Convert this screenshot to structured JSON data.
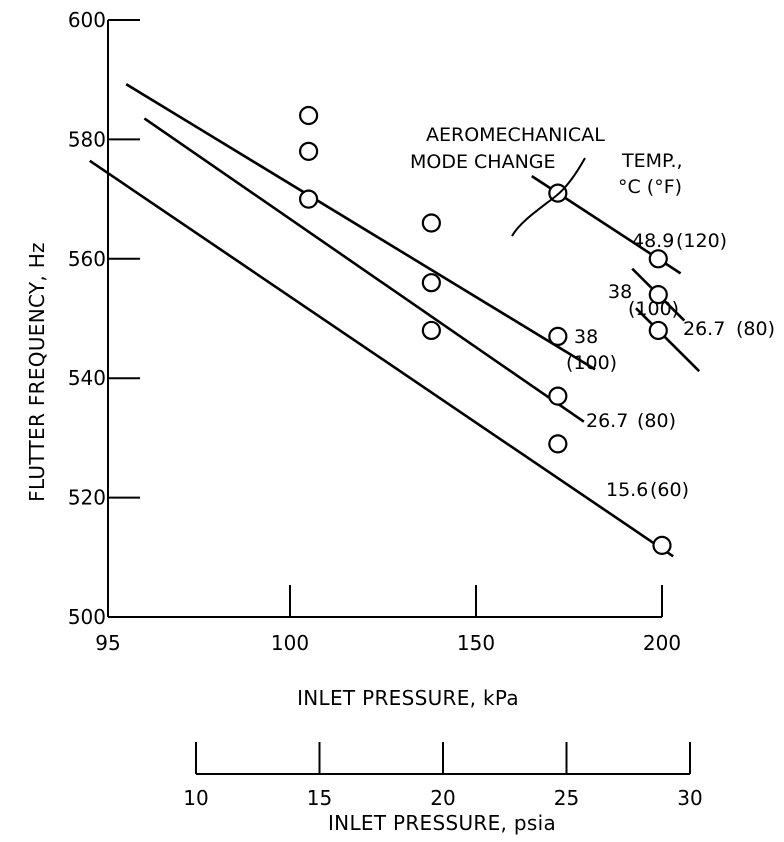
{
  "chart_data": {
    "type": "scatter",
    "ylabel": "FLUTTER FREQUENCY, Hz",
    "xlabel": "INLET PRESSURE, kPa",
    "xlabel2": "INLET PRESSURE, psia",
    "ylim": [
      500,
      600
    ],
    "y_ticks": [
      "500",
      "520",
      "540",
      "560",
      "580",
      "600"
    ],
    "x_ticks": [
      "95",
      "100",
      "150",
      "200"
    ],
    "x2_ticks": [
      "10",
      "15",
      "20",
      "25",
      "30"
    ],
    "legend_title": "TEMP.,",
    "legend_units": "°C (°F)",
    "series": [
      {
        "label_c": "48.9",
        "label_f": "(120)",
        "points": [
          [
            172,
            571
          ],
          [
            199,
            560
          ]
        ]
      },
      {
        "label_c": "38",
        "label_f": "(100)",
        "points": [
          [
            105,
            584
          ],
          [
            138,
            566
          ],
          [
            172,
            547
          ]
        ]
      },
      {
        "label_c": "38",
        "label_f": "(100)",
        "points": [
          [
            199,
            554
          ]
        ]
      },
      {
        "label_c": "26.7",
        "label_f": "(80)",
        "points": [
          [
            105,
            578
          ],
          [
            138,
            556
          ],
          [
            172,
            537
          ]
        ]
      },
      {
        "label_c": "26.7",
        "label_f": "(80)",
        "points": [
          [
            199,
            548
          ]
        ]
      },
      {
        "label_c": "15.6",
        "label_f": "(60)",
        "points": [
          [
            105,
            570
          ],
          [
            138,
            548
          ],
          [
            172,
            529
          ],
          [
            200,
            512
          ]
        ]
      }
    ],
    "annotation": "AEROMECHANICAL MODE CHANGE",
    "annotation_lines": [
      "AEROMECHANICAL",
      "MODE CHANGE"
    ]
  }
}
